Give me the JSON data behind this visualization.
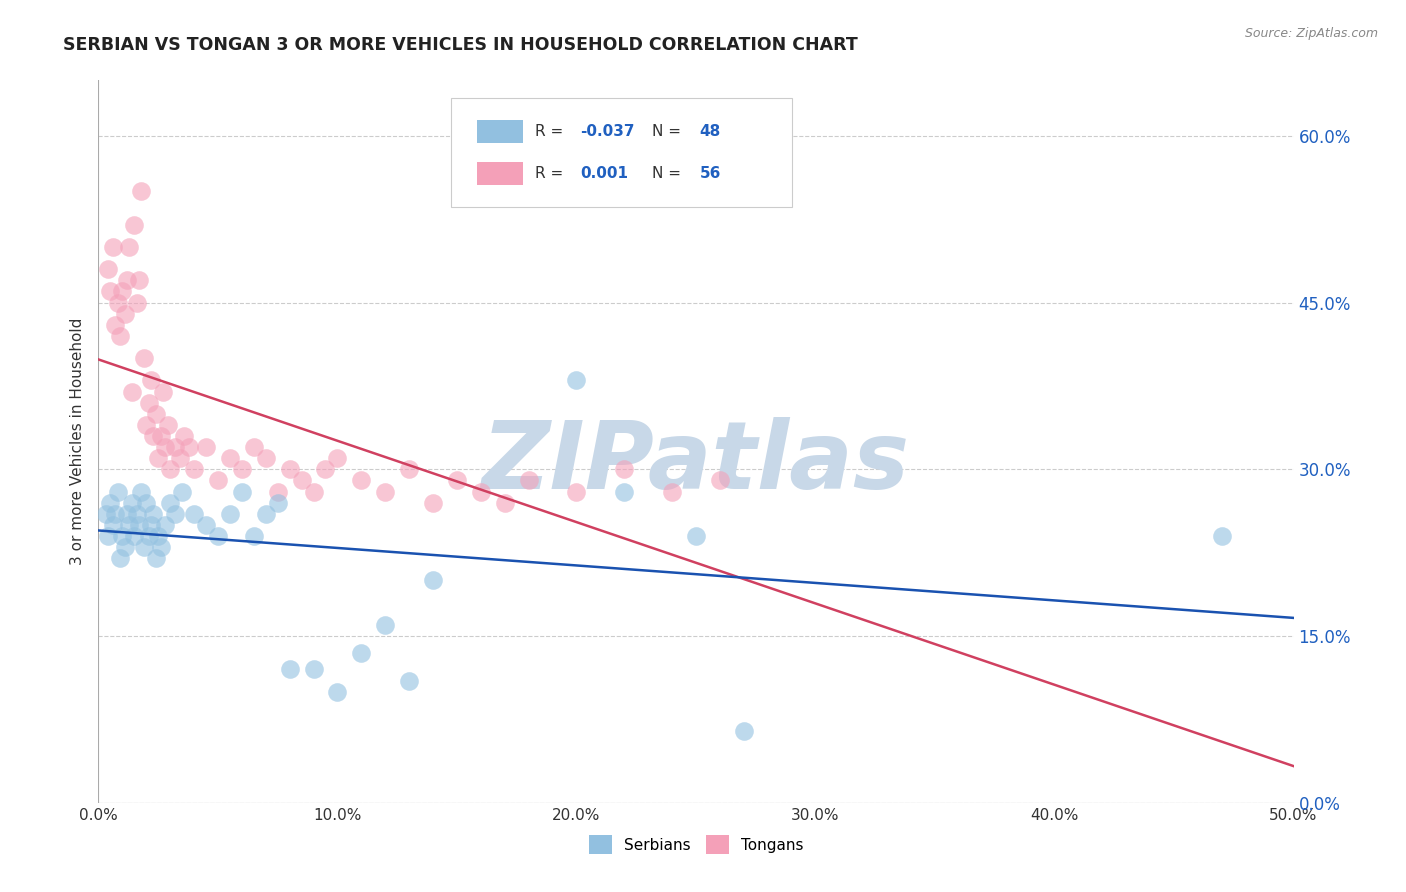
{
  "title": "SERBIAN VS TONGAN 3 OR MORE VEHICLES IN HOUSEHOLD CORRELATION CHART",
  "source_text": "Source: ZipAtlas.com",
  "ylabel": "3 or more Vehicles in Household",
  "xlim": [
    0.0,
    50.0
  ],
  "ylim": [
    0.0,
    65.0
  ],
  "x_ticks": [
    0.0,
    10.0,
    20.0,
    30.0,
    40.0,
    50.0
  ],
  "x_tick_labels": [
    "0.0%",
    "10.0%",
    "20.0%",
    "30.0%",
    "40.0%",
    "50.0%"
  ],
  "y_ticks": [
    0.0,
    15.0,
    30.0,
    45.0,
    60.0
  ],
  "serbian_color": "#92c0e0",
  "tongan_color": "#f4a0b8",
  "serbian_line_color": "#1a52b0",
  "tongan_line_color": "#d04060",
  "background_color": "#ffffff",
  "watermark": "ZIPatlas",
  "watermark_color": "#c8d8e8",
  "grid_color": "#cccccc",
  "serbian_R": -0.037,
  "tongan_R": 0.001,
  "serbian_N": 48,
  "tongan_N": 56,
  "serbian_x": [
    0.3,
    0.4,
    0.5,
    0.6,
    0.7,
    0.8,
    0.9,
    1.0,
    1.1,
    1.2,
    1.3,
    1.4,
    1.5,
    1.6,
    1.7,
    1.8,
    1.9,
    2.0,
    2.1,
    2.2,
    2.3,
    2.4,
    2.5,
    2.6,
    2.8,
    3.0,
    3.2,
    3.5,
    4.0,
    4.5,
    5.0,
    5.5,
    6.0,
    6.5,
    7.0,
    7.5,
    8.0,
    9.0,
    10.0,
    11.0,
    12.0,
    13.0,
    14.0,
    20.0,
    22.0,
    25.0,
    27.0,
    47.0
  ],
  "serbian_y": [
    26.0,
    24.0,
    27.0,
    25.0,
    26.0,
    28.0,
    22.0,
    24.0,
    23.0,
    26.0,
    25.0,
    27.0,
    24.0,
    26.0,
    25.0,
    28.0,
    23.0,
    27.0,
    24.0,
    25.0,
    26.0,
    22.0,
    24.0,
    23.0,
    25.0,
    27.0,
    26.0,
    28.0,
    26.0,
    25.0,
    24.0,
    26.0,
    28.0,
    24.0,
    26.0,
    27.0,
    12.0,
    12.0,
    10.0,
    13.5,
    16.0,
    11.0,
    20.0,
    38.0,
    28.0,
    24.0,
    6.5,
    24.0
  ],
  "tongan_x": [
    0.4,
    0.5,
    0.6,
    0.7,
    0.8,
    0.9,
    1.0,
    1.1,
    1.2,
    1.3,
    1.4,
    1.5,
    1.6,
    1.7,
    1.8,
    1.9,
    2.0,
    2.1,
    2.2,
    2.3,
    2.4,
    2.5,
    2.6,
    2.7,
    2.8,
    2.9,
    3.0,
    3.2,
    3.4,
    3.6,
    3.8,
    4.0,
    4.5,
    5.0,
    5.5,
    6.0,
    6.5,
    7.0,
    7.5,
    8.0,
    8.5,
    9.0,
    9.5,
    10.0,
    11.0,
    12.0,
    13.0,
    14.0,
    15.0,
    16.0,
    17.0,
    18.0,
    20.0,
    22.0,
    24.0,
    26.0
  ],
  "tongan_y": [
    48.0,
    46.0,
    50.0,
    43.0,
    45.0,
    42.0,
    46.0,
    44.0,
    47.0,
    50.0,
    37.0,
    52.0,
    45.0,
    47.0,
    55.0,
    40.0,
    34.0,
    36.0,
    38.0,
    33.0,
    35.0,
    31.0,
    33.0,
    37.0,
    32.0,
    34.0,
    30.0,
    32.0,
    31.0,
    33.0,
    32.0,
    30.0,
    32.0,
    29.0,
    31.0,
    30.0,
    32.0,
    31.0,
    28.0,
    30.0,
    29.0,
    28.0,
    30.0,
    31.0,
    29.0,
    28.0,
    30.0,
    27.0,
    29.0,
    28.0,
    27.0,
    29.0,
    28.0,
    30.0,
    28.0,
    29.0
  ]
}
